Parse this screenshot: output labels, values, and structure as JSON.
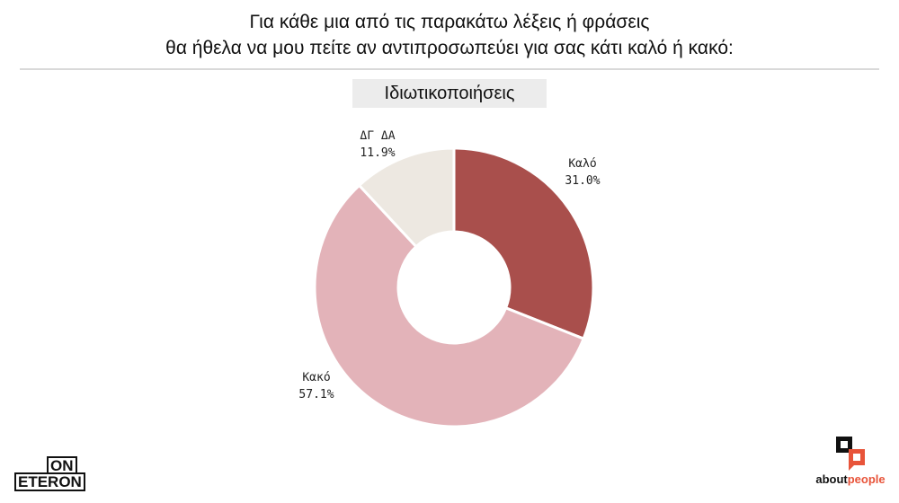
{
  "header": {
    "title_line1": "Για κάθε μια από τις παρακάτω λέξεις ή φράσεις",
    "title_line2": "θα ήθελα να μου πείτε αν αντιπροσωπεύει για σας κάτι καλό ή κακό:"
  },
  "chart_data": {
    "type": "pie",
    "donut": true,
    "title": "Ιδιωτικοποιήσεις",
    "slices": [
      {
        "label": "Καλό",
        "value": 31.0,
        "display": "31.0%",
        "color": "#a94f4c"
      },
      {
        "label": "Κακό",
        "value": 57.1,
        "display": "57.1%",
        "color": "#e3b3b9"
      },
      {
        "label": "ΔΓ ΔΑ",
        "value": 11.9,
        "display": "11.9%",
        "color": "#ede8e1"
      }
    ],
    "legend": "none"
  },
  "logos": {
    "left_top": "ON",
    "left_bottom": "ETERON",
    "right_about": "about",
    "right_people": "people",
    "accent": "#e8543a"
  }
}
